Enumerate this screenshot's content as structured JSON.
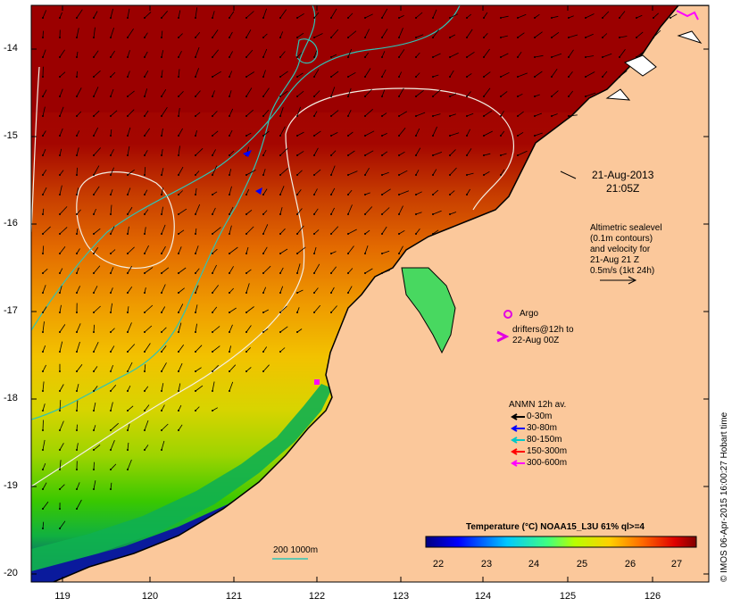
{
  "map": {
    "date": "21-Aug-2013",
    "time": "21:05Z",
    "y_ticks": [
      "-14",
      "-15",
      "-16",
      "-17",
      "-18",
      "-19",
      "-20"
    ],
    "x_ticks": [
      "119",
      "120",
      "121",
      "122",
      "123",
      "124",
      "125",
      "126"
    ],
    "land_color": "#fbc89b",
    "frame_color": "#000000"
  },
  "altimetry": {
    "line1": "Altimetric sealevel",
    "line2": "(0.1m contours)",
    "line3": "and velocity for",
    "line4": "21-Aug 21 Z",
    "line5": "0.5m/s (1kt 24h)"
  },
  "argo": {
    "label": "Argo",
    "color": "#e100e1"
  },
  "drifters": {
    "line1": "drifters@12h to",
    "line2": "22-Aug 00Z",
    "color": "#e100e1"
  },
  "anmn": {
    "title": "ANMN 12h av.",
    "items": [
      {
        "label": "0-30m",
        "color": "#000000"
      },
      {
        "label": "30-80m",
        "color": "#0000ff"
      },
      {
        "label": "80-150m",
        "color": "#00c8c8"
      },
      {
        "label": "150-300m",
        "color": "#ff0000"
      },
      {
        "label": "300-600m",
        "color": "#ff00ff"
      }
    ]
  },
  "isobath": {
    "label": "200 1000m",
    "color": "#2ec4b6"
  },
  "colorbar": {
    "title": "Temperature (°C) NOAA15_L3U 61% ql>=4",
    "ticks": [
      "22",
      "23",
      "24",
      "25",
      "26",
      "27"
    ]
  },
  "credit": "© IMOS 06-Apr-2015 16:00:27 Hobart time"
}
